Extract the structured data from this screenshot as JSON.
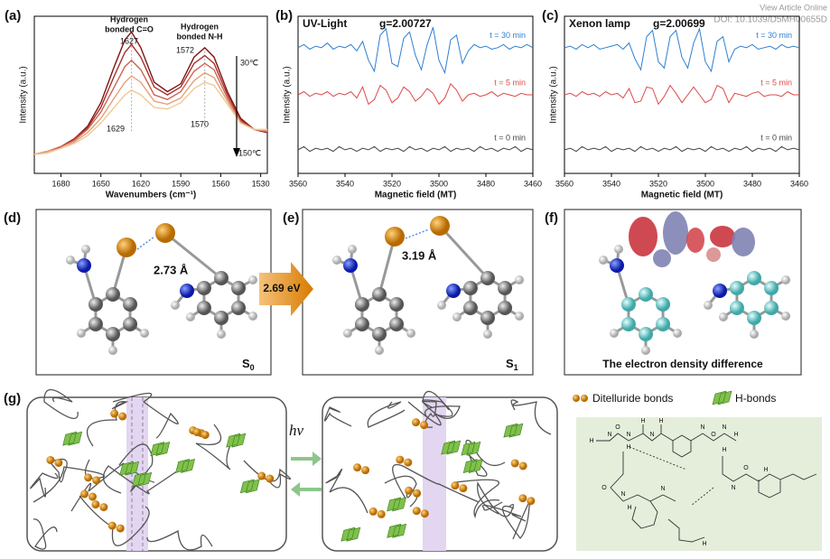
{
  "header": {
    "link": "View Article Online",
    "doi": "DOI: 10.1039/D5MH00655D"
  },
  "chart_data": [
    {
      "type": "line",
      "panel": "(a)",
      "xlabel": "Wavenumbers (cm⁻¹)",
      "ylabel": "Intensity (a.u.)",
      "xlim": [
        1700,
        1525
      ],
      "ylim": [
        0,
        100
      ],
      "xticks": [
        1680,
        1650,
        1620,
        1590,
        1560,
        1530
      ],
      "annotations": [
        "Hydrogen",
        "bonded C=O",
        "1627",
        "1629",
        "Hydrogen",
        "bonded N-H",
        "1572",
        "1570",
        "30℃",
        "150℃"
      ],
      "x": [
        1700,
        1690,
        1680,
        1670,
        1660,
        1650,
        1640,
        1632,
        1627,
        1620,
        1610,
        1600,
        1590,
        1580,
        1572,
        1565,
        1555,
        1545,
        1535,
        1525
      ],
      "series": [
        {
          "color": "#7d1414",
          "values": [
            12,
            14,
            17,
            22,
            30,
            45,
            68,
            85,
            90,
            80,
            58,
            52,
            57,
            74,
            80,
            74,
            52,
            35,
            28,
            26
          ]
        },
        {
          "color": "#a8302a",
          "values": [
            12,
            14,
            17,
            22,
            29,
            42,
            62,
            77,
            82,
            74,
            55,
            50,
            55,
            70,
            75,
            70,
            50,
            34,
            28,
            26
          ]
        },
        {
          "color": "#cc6553",
          "values": [
            12,
            14,
            17,
            21,
            28,
            39,
            55,
            68,
            72,
            66,
            50,
            47,
            52,
            65,
            70,
            66,
            48,
            33,
            28,
            27
          ]
        },
        {
          "color": "#e2a07a",
          "values": [
            12,
            14,
            16,
            20,
            26,
            35,
            48,
            58,
            62,
            58,
            46,
            44,
            48,
            59,
            64,
            61,
            46,
            32,
            28,
            27
          ]
        },
        {
          "color": "#efc995",
          "values": [
            12,
            13,
            16,
            19,
            24,
            32,
            42,
            50,
            53,
            50,
            42,
            41,
            45,
            54,
            58,
            56,
            44,
            32,
            28,
            28
          ]
        }
      ]
    },
    {
      "type": "line",
      "panel": "(b)",
      "title": "UV-Light",
      "subtitle": "g=2.00727",
      "xlabel": "Magnetic field (MT)",
      "ylabel": "Intensity (a.u.)",
      "xlim": [
        3560,
        3460
      ],
      "ylim": [
        0,
        100
      ],
      "xticks": [
        3560,
        3540,
        3520,
        3500,
        3480,
        3460
      ],
      "x": [
        3560,
        3557.5,
        3555,
        3552.5,
        3550,
        3547.5,
        3545,
        3542.5,
        3540,
        3537.5,
        3535,
        3532.5,
        3530,
        3527.5,
        3525,
        3522.5,
        3520,
        3517.5,
        3515,
        3512.5,
        3510,
        3507.5,
        3505,
        3502.5,
        3500,
        3497.5,
        3495,
        3492.5,
        3490,
        3487.5,
        3485,
        3482.5,
        3480,
        3477.5,
        3475,
        3472.5,
        3470,
        3467.5,
        3465,
        3462.5,
        3460
      ],
      "series": [
        {
          "name": "t = 30 min",
          "color": "#2f7fd0",
          "values": [
            80,
            82,
            79,
            81,
            80,
            83,
            79,
            81,
            80,
            82,
            78,
            84,
            72,
            65,
            88,
            92,
            70,
            68,
            86,
            90,
            75,
            66,
            82,
            93,
            72,
            64,
            85,
            88,
            70,
            78,
            82,
            80,
            81,
            79,
            80,
            82,
            79,
            81,
            80,
            82,
            80
          ]
        },
        {
          "name": "t = 5 min",
          "color": "#e04848",
          "values": [
            50,
            52,
            49,
            51,
            50,
            52,
            49,
            51,
            50,
            52,
            48,
            55,
            44,
            47,
            56,
            53,
            45,
            48,
            55,
            52,
            46,
            49,
            54,
            51,
            44,
            48,
            57,
            53,
            46,
            50,
            51,
            49,
            50,
            52,
            49,
            51,
            50,
            49,
            51,
            50,
            50
          ]
        },
        {
          "name": "t = 0 min",
          "color": "#444444",
          "values": [
            15,
            17,
            14,
            16,
            15,
            16,
            14,
            17,
            15,
            16,
            14,
            16,
            15,
            17,
            14,
            16,
            15,
            16,
            14,
            17,
            15,
            16,
            14,
            16,
            15,
            17,
            14,
            16,
            15,
            16,
            14,
            17,
            15,
            16,
            14,
            16,
            15,
            17,
            14,
            16,
            15
          ]
        }
      ]
    },
    {
      "type": "line",
      "panel": "(c)",
      "title": "Xenon lamp",
      "subtitle": "g=2.00699",
      "xlabel": "Magnetic field (MT)",
      "ylabel": "Intensity (a.u.)",
      "xlim": [
        3560,
        3460
      ],
      "ylim": [
        0,
        100
      ],
      "xticks": [
        3560,
        3540,
        3520,
        3500,
        3480,
        3460
      ],
      "x": [
        3560,
        3557.5,
        3555,
        3552.5,
        3550,
        3547.5,
        3545,
        3542.5,
        3540,
        3537.5,
        3535,
        3532.5,
        3530,
        3527.5,
        3525,
        3522.5,
        3520,
        3517.5,
        3515,
        3512.5,
        3510,
        3507.5,
        3505,
        3502.5,
        3500,
        3497.5,
        3495,
        3492.5,
        3490,
        3487.5,
        3485,
        3482.5,
        3480,
        3477.5,
        3475,
        3472.5,
        3470,
        3467.5,
        3465,
        3462.5,
        3460
      ],
      "series": [
        {
          "name": "t = 30 min",
          "color": "#2f7fd0",
          "values": [
            80,
            81,
            79,
            82,
            80,
            82,
            79,
            80,
            81,
            82,
            79,
            83,
            73,
            66,
            87,
            91,
            71,
            67,
            87,
            91,
            74,
            67,
            83,
            92,
            71,
            65,
            84,
            87,
            71,
            79,
            81,
            80,
            82,
            79,
            80,
            81,
            79,
            82,
            80,
            81,
            80
          ]
        },
        {
          "name": "t = 5 min",
          "color": "#e04848",
          "values": [
            50,
            51,
            49,
            52,
            50,
            51,
            49,
            52,
            50,
            51,
            48,
            54,
            45,
            46,
            55,
            54,
            44,
            49,
            56,
            51,
            45,
            50,
            55,
            50,
            45,
            47,
            56,
            54,
            45,
            51,
            50,
            49,
            51,
            52,
            49,
            50,
            50,
            49,
            52,
            50,
            50
          ]
        },
        {
          "name": "t = 0 min",
          "color": "#444444",
          "values": [
            15,
            16,
            14,
            17,
            15,
            16,
            15,
            17,
            14,
            16,
            15,
            16,
            14,
            17,
            15,
            16,
            14,
            16,
            15,
            17,
            14,
            16,
            15,
            16,
            14,
            17,
            15,
            16,
            14,
            16,
            15,
            17,
            14,
            16,
            15,
            16,
            14,
            17,
            15,
            16,
            15
          ]
        }
      ]
    }
  ],
  "panels": {
    "d": {
      "label": "(d)",
      "distance": "2.73 Å",
      "state": "S",
      "sub": "0"
    },
    "arrow": "2.69 eV",
    "e": {
      "label": "(e)",
      "distance": "3.19 Å",
      "state": "S",
      "sub": "1"
    },
    "f": {
      "label": "(f)",
      "caption": "The electron density difference"
    },
    "g": {
      "label": "(g)",
      "light": "hv",
      "legend": [
        "Ditelluride bonds",
        "H-bonds"
      ]
    }
  },
  "structure": {
    "atoms": [
      "H",
      "N",
      "O",
      "N",
      "H",
      "N",
      "H",
      "H",
      "N",
      "O",
      "N",
      "H",
      "O",
      "N",
      "H",
      "N",
      "H",
      "N",
      "O",
      "H",
      "H"
    ]
  }
}
